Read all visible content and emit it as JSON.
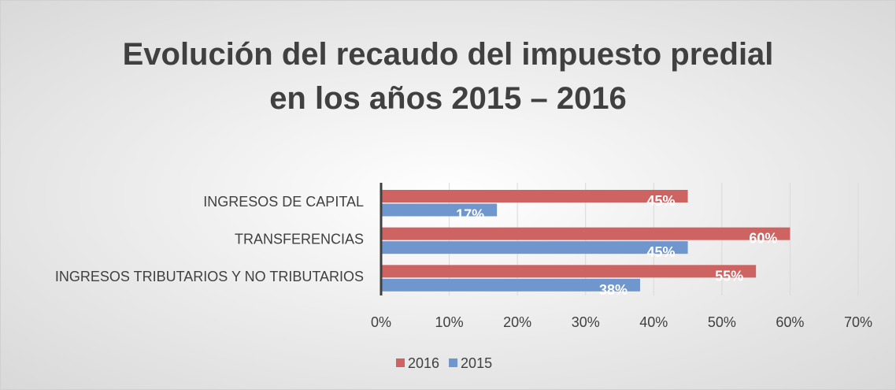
{
  "chart_data": {
    "type": "barh",
    "title": [
      "Evolución del recaudo del impuesto predial",
      "en los años 2015 – 2016"
    ],
    "categories": [
      "INGRESOS DE CAPITAL",
      "TRANSFERENCIAS ",
      "INGRESOS  TRIBUTARIOS Y NO TRIBUTARIOS"
    ],
    "series": [
      {
        "name": "2016",
        "color": "#cd6462",
        "values": [
          45,
          60,
          55
        ],
        "value_labels": [
          "45%",
          "60%",
          "55%"
        ]
      },
      {
        "name": "2015",
        "color": "#6f97cd",
        "values": [
          17,
          45,
          38
        ],
        "value_labels": [
          "17%",
          "45%",
          "38%"
        ]
      }
    ],
    "xlim": [
      0,
      70
    ],
    "xticks": [
      {
        "value": 0,
        "label": "0%"
      },
      {
        "value": 10,
        "label": "10%"
      },
      {
        "value": 20,
        "label": "20%"
      },
      {
        "value": 30,
        "label": "30%"
      },
      {
        "value": 40,
        "label": "40%"
      },
      {
        "value": 50,
        "label": "50%"
      },
      {
        "value": 60,
        "label": "60%"
      },
      {
        "value": 70,
        "label": "70%"
      }
    ],
    "grid": true,
    "legend": "bottom"
  }
}
